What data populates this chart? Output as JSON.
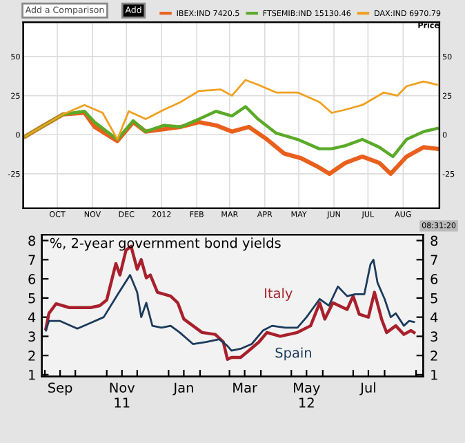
{
  "chart_data": [
    {
      "type": "line",
      "legend": "top",
      "grid": true,
      "y2label": "Price",
      "annotations": [
        "Add a Comparison",
        "Add",
        "08:31:20"
      ],
      "xlim": [
        "2011-09-01",
        "2012-09-02"
      ],
      "ylim": [
        -47,
        72
      ],
      "yticks": [
        50,
        25,
        0,
        {
          "value": -25,
          "label": "-25"
        }
      ],
      "y2lim": [
        -47,
        72
      ],
      "y2ticks": [
        50,
        25,
        0,
        {
          "value": -25,
          "label": "-25"
        }
      ],
      "xticks": [
        {
          "value": "2011-10-01",
          "label": "OCT"
        },
        {
          "value": "2011-11-01",
          "label": "NOV"
        },
        {
          "value": "2011-12-01",
          "label": "DEC"
        },
        {
          "value": "2012-01-01",
          "label": "2012"
        },
        {
          "value": "2012-02-01",
          "label": "FEB"
        },
        {
          "value": "2012-03-01",
          "label": "MAR"
        },
        {
          "value": "2012-04-01",
          "label": "APR"
        },
        {
          "value": "2012-05-01",
          "label": "MAY"
        },
        {
          "value": "2012-06-01",
          "label": "JUN"
        },
        {
          "value": "2012-07-01",
          "label": "JUL"
        },
        {
          "value": "2012-08-01",
          "label": "AUG"
        }
      ],
      "series": [
        {
          "name": "IBEX:IND 7420.5",
          "color": "#e8601c",
          "x": [
            "2011-09-03",
            "2011-09-17",
            "2011-10-06",
            "2011-10-25",
            "2011-11-03",
            "2011-11-23",
            "2011-12-07",
            "2011-12-18",
            "2012-01-18",
            "2012-02-03",
            "2012-02-18",
            "2012-03-03",
            "2012-03-18",
            "2012-04-03",
            "2012-04-18",
            "2012-05-03",
            "2012-05-19",
            "2012-05-28",
            "2012-06-11",
            "2012-06-26",
            "2012-07-11",
            "2012-07-21",
            "2012-08-04",
            "2012-08-19",
            "2012-08-31"
          ],
          "values": [
            -1,
            5,
            13,
            14,
            5,
            -4,
            8,
            2,
            5,
            8,
            6,
            2,
            5,
            -3,
            -12,
            -15,
            -21,
            -25,
            -18,
            -14,
            -18,
            -25,
            -14,
            -8,
            -9
          ]
        },
        {
          "name": "FTSEMIB:IND 15130.46",
          "color": "#5aaa28",
          "x": [
            "2011-09-03",
            "2011-09-17",
            "2011-10-06",
            "2011-10-25",
            "2011-11-03",
            "2011-11-23",
            "2011-12-07",
            "2011-12-18",
            "2012-01-03",
            "2012-01-18",
            "2012-02-03",
            "2012-02-18",
            "2012-03-03",
            "2012-03-15",
            "2012-03-26",
            "2012-04-11",
            "2012-04-30",
            "2012-05-19",
            "2012-05-30",
            "2012-06-11",
            "2012-06-26",
            "2012-07-11",
            "2012-07-23",
            "2012-08-04",
            "2012-08-19",
            "2012-08-31"
          ],
          "values": [
            -1,
            5,
            13,
            15,
            8,
            -3,
            9,
            2,
            6,
            5,
            10,
            15,
            12,
            18,
            10,
            1,
            -3,
            -9,
            -9,
            -7,
            -3,
            -8,
            -14,
            -3,
            2,
            4
          ]
        },
        {
          "name": "DAX:IND 6970.79",
          "color": "#f0a020",
          "x": [
            "2011-09-03",
            "2011-09-17",
            "2011-10-06",
            "2011-10-25",
            "2011-11-10",
            "2011-11-23",
            "2011-12-03",
            "2011-12-18",
            "2012-01-03",
            "2012-01-18",
            "2012-02-03",
            "2012-02-22",
            "2012-03-03",
            "2012-03-15",
            "2012-03-26",
            "2012-04-11",
            "2012-04-30",
            "2012-05-19",
            "2012-05-30",
            "2012-06-11",
            "2012-06-26",
            "2012-07-15",
            "2012-07-27",
            "2012-08-04",
            "2012-08-19",
            "2012-08-31"
          ],
          "values": [
            -1,
            5,
            13,
            19,
            14,
            -3,
            15,
            10,
            16,
            21,
            28,
            29,
            25,
            35,
            32,
            27,
            27,
            21,
            14,
            16,
            19,
            27,
            25,
            31,
            34,
            32
          ]
        }
      ]
    },
    {
      "type": "line",
      "title": "%, 2-year government bond yields",
      "grid": false,
      "annotations": [
        "Italy",
        "Spain"
      ],
      "xlim": [
        "2011-08-29",
        "2012-09-08"
      ],
      "ylim": [
        0.9,
        8.3
      ],
      "yticks": [
        1,
        2,
        3,
        4,
        5,
        6,
        7,
        8
      ],
      "y2lim": [
        0.9,
        8.3
      ],
      "y2ticks": [
        1,
        2,
        3,
        4,
        5,
        6,
        7,
        8
      ],
      "xticks": [
        {
          "value": "2011-09-01",
          "label": null
        },
        {
          "value": "2011-09-16",
          "label": "Sep"
        },
        {
          "value": "2011-10-01",
          "label": null
        },
        {
          "value": "2011-11-01",
          "label": null
        },
        {
          "value": "2011-11-16",
          "label": "Nov\n11"
        },
        {
          "value": "2011-12-01",
          "label": null
        },
        {
          "value": "2012-01-01",
          "label": null
        },
        {
          "value": "2012-01-16",
          "label": "Jan"
        },
        {
          "value": "2012-02-01",
          "label": null
        },
        {
          "value": "2012-03-01",
          "label": null
        },
        {
          "value": "2012-03-16",
          "label": "Mar"
        },
        {
          "value": "2012-04-01",
          "label": null
        },
        {
          "value": "2012-05-01",
          "label": null
        },
        {
          "value": "2012-05-16",
          "label": "May\n12"
        },
        {
          "value": "2012-06-01",
          "label": null
        },
        {
          "value": "2012-07-01",
          "label": null
        },
        {
          "value": "2012-07-16",
          "label": "Jul"
        },
        {
          "value": "2012-08-01",
          "label": null
        },
        {
          "value": "2012-09-01",
          "label": null
        }
      ],
      "series": [
        {
          "color": "#a8202c",
          "x": [
            "2011-09-02",
            "2011-09-05",
            "2011-09-12",
            "2011-09-25",
            "2011-10-16",
            "2011-10-25",
            "2011-11-01",
            "2011-11-10",
            "2011-11-14",
            "2011-11-20",
            "2011-11-25",
            "2011-12-01",
            "2011-12-05",
            "2011-12-10",
            "2011-12-14",
            "2011-12-21",
            "2012-01-03",
            "2012-01-10",
            "2012-01-16",
            "2012-01-25",
            "2012-02-03",
            "2012-02-16",
            "2012-02-24",
            "2012-02-28",
            "2012-03-03",
            "2012-03-12",
            "2012-03-20",
            "2012-03-30",
            "2012-04-07",
            "2012-04-20",
            "2012-05-07",
            "2012-05-20",
            "2012-05-29",
            "2012-06-03",
            "2012-06-11",
            "2012-06-25",
            "2012-07-01",
            "2012-07-07",
            "2012-07-16",
            "2012-07-22",
            "2012-07-29",
            "2012-08-03",
            "2012-08-12",
            "2012-08-20",
            "2012-08-27",
            "2012-08-30"
          ],
          "values": [
            3.4,
            4.2,
            4.7,
            4.5,
            4.5,
            4.6,
            4.9,
            6.8,
            6.2,
            7.5,
            7.7,
            6.5,
            7.0,
            6.05,
            6.2,
            5.3,
            5.1,
            4.75,
            3.9,
            3.55,
            3.2,
            3.1,
            2.7,
            1.8,
            1.9,
            1.9,
            2.25,
            2.7,
            3.2,
            3.0,
            3.2,
            3.55,
            4.75,
            3.9,
            4.75,
            4.4,
            5.1,
            4.15,
            4.0,
            5.3,
            3.9,
            3.2,
            3.55,
            3.1,
            3.3,
            3.2
          ]
        },
        {
          "color": "#1c3a5c",
          "x": [
            "2011-09-02",
            "2011-09-05",
            "2011-09-16",
            "2011-10-03",
            "2011-10-16",
            "2011-10-29",
            "2011-11-12",
            "2011-11-24",
            "2011-12-01",
            "2011-12-05",
            "2011-12-10",
            "2011-12-16",
            "2011-12-25",
            "2012-01-03",
            "2012-01-12",
            "2012-01-25",
            "2012-02-07",
            "2012-02-20",
            "2012-02-28",
            "2012-03-03",
            "2012-03-12",
            "2012-03-23",
            "2012-04-03",
            "2012-04-12",
            "2012-04-25",
            "2012-05-07",
            "2012-05-16",
            "2012-05-29",
            "2012-06-07",
            "2012-06-16",
            "2012-06-25",
            "2012-07-03",
            "2012-07-12",
            "2012-07-18",
            "2012-07-21",
            "2012-07-25",
            "2012-08-01",
            "2012-08-07",
            "2012-08-12",
            "2012-08-20",
            "2012-08-25",
            "2012-08-30"
          ],
          "values": [
            3.3,
            3.8,
            3.8,
            3.4,
            3.7,
            4.0,
            5.2,
            6.2,
            5.3,
            4.0,
            4.75,
            3.55,
            3.45,
            3.55,
            3.2,
            2.6,
            2.7,
            2.85,
            2.5,
            2.25,
            2.35,
            2.6,
            3.3,
            3.55,
            3.45,
            3.45,
            4.0,
            4.95,
            4.6,
            5.6,
            5.1,
            5.2,
            5.2,
            6.75,
            7.0,
            5.8,
            4.95,
            4.0,
            4.2,
            3.55,
            3.8,
            3.75
          ]
        }
      ]
    }
  ]
}
